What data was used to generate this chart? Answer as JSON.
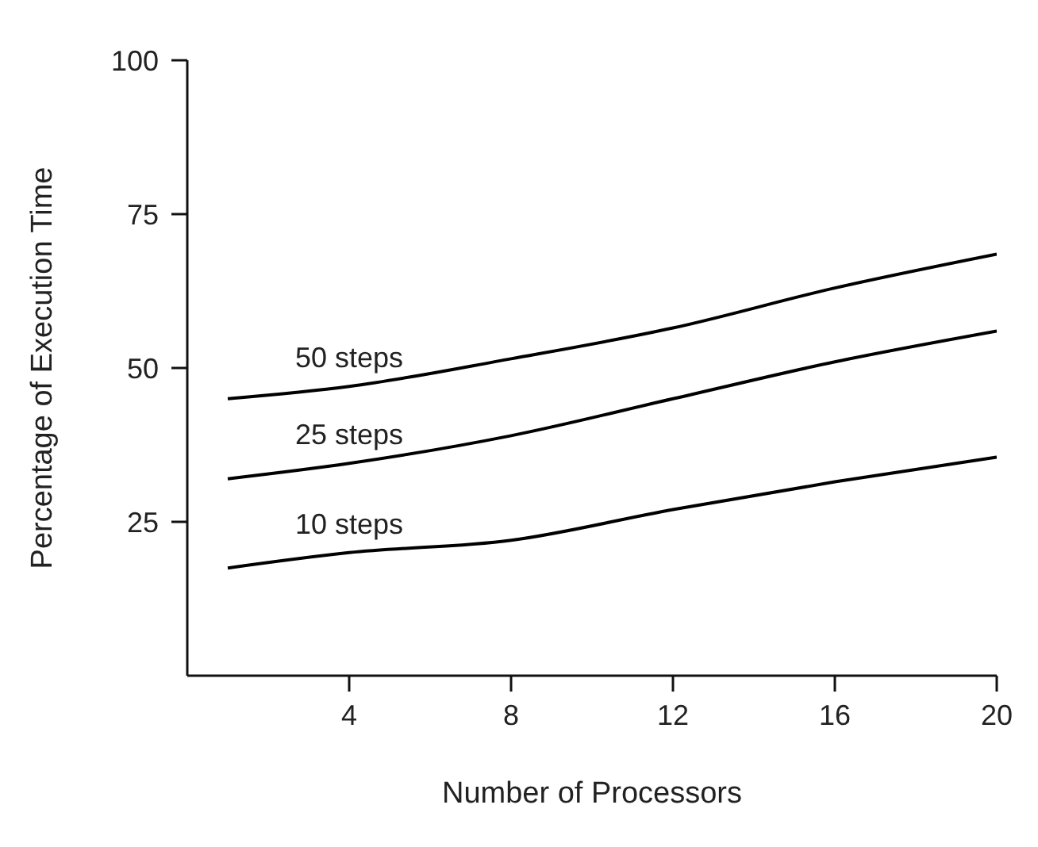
{
  "chart_data": {
    "type": "line",
    "xlabel": "Number of Processors",
    "ylabel": "Percentage of Execution Time",
    "x": [
      1,
      4,
      8,
      12,
      16,
      20
    ],
    "series": [
      {
        "name": "50 steps",
        "color": "#000000",
        "values": [
          45,
          47,
          51.5,
          56.5,
          63,
          68.5
        ]
      },
      {
        "name": "25 steps",
        "color": "#000000",
        "values": [
          32,
          34.5,
          39,
          45,
          51,
          56
        ]
      },
      {
        "name": "10 steps",
        "color": "#000000",
        "values": [
          17.5,
          20,
          22,
          27,
          31.5,
          35.5
        ]
      }
    ],
    "xlim": [
      0,
      20
    ],
    "xticks": [
      4,
      8,
      12,
      16,
      20
    ],
    "ylim": [
      0,
      100
    ],
    "yticks": [
      25,
      50,
      75,
      100
    ],
    "grid": false,
    "legend": false,
    "marker": "none",
    "line_style": "solid"
  }
}
